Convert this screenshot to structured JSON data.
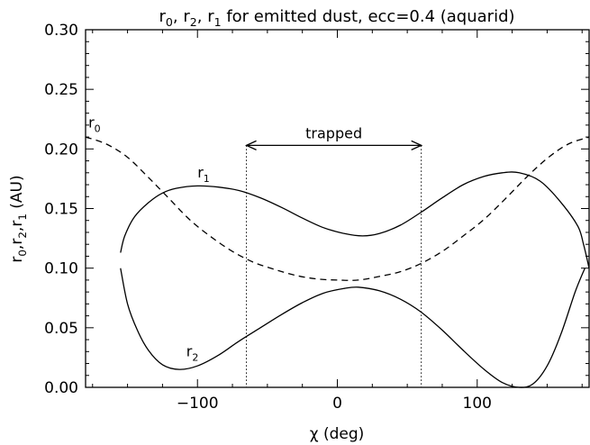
{
  "chart_data": {
    "type": "line",
    "title": {
      "parts": [
        {
          "t": "r"
        },
        {
          "t": "0",
          "sub": true
        },
        {
          "t": ", r"
        },
        {
          "t": "2",
          "sub": true
        },
        {
          "t": ", r"
        },
        {
          "t": "1",
          "sub": true
        },
        {
          "t": " for emitted dust, ecc=0.4 (aquarid)"
        }
      ]
    },
    "xlabel": "χ (deg)",
    "ylabel": {
      "parts": [
        {
          "t": "r"
        },
        {
          "t": "0",
          "sub": true
        },
        {
          "t": ",r"
        },
        {
          "t": "2",
          "sub": true
        },
        {
          "t": ",r"
        },
        {
          "t": "1",
          "sub": true
        },
        {
          "t": " (AU)"
        }
      ]
    },
    "xlim": [
      -180,
      180
    ],
    "ylim": [
      0,
      0.3
    ],
    "xticks": [
      -100,
      0,
      100
    ],
    "xtick_labels": [
      "−100",
      "0",
      "100"
    ],
    "yticks": [
      0,
      0.05,
      0.1,
      0.15,
      0.2,
      0.25,
      0.3
    ],
    "ytick_labels": [
      "0.00",
      "0.05",
      "0.10",
      "0.15",
      "0.20",
      "0.25",
      "0.30"
    ],
    "series": [
      {
        "label": {
          "base": "r",
          "sub": "0"
        },
        "style": "dashed",
        "points": [
          [
            -180,
            0.21
          ],
          [
            -165,
            0.204
          ],
          [
            -150,
            0.193
          ],
          [
            -135,
            0.176
          ],
          [
            -120,
            0.158
          ],
          [
            -105,
            0.14
          ],
          [
            -90,
            0.126
          ],
          [
            -75,
            0.114
          ],
          [
            -60,
            0.105
          ],
          [
            -45,
            0.099
          ],
          [
            -30,
            0.094
          ],
          [
            -15,
            0.091
          ],
          [
            0,
            0.09
          ],
          [
            15,
            0.09
          ],
          [
            30,
            0.093
          ],
          [
            45,
            0.097
          ],
          [
            60,
            0.104
          ],
          [
            75,
            0.114
          ],
          [
            90,
            0.127
          ],
          [
            105,
            0.141
          ],
          [
            120,
            0.158
          ],
          [
            135,
            0.176
          ],
          [
            150,
            0.192
          ],
          [
            165,
            0.204
          ],
          [
            180,
            0.21
          ]
        ]
      },
      {
        "label": {
          "base": "r",
          "sub": "1"
        },
        "style": "solid",
        "points": [
          [
            -155,
            0.113
          ],
          [
            -152,
            0.127
          ],
          [
            -145,
            0.143
          ],
          [
            -135,
            0.155
          ],
          [
            -125,
            0.163
          ],
          [
            -115,
            0.167
          ],
          [
            -100,
            0.169
          ],
          [
            -85,
            0.168
          ],
          [
            -70,
            0.165
          ],
          [
            -55,
            0.159
          ],
          [
            -40,
            0.151
          ],
          [
            -25,
            0.142
          ],
          [
            -10,
            0.134
          ],
          [
            5,
            0.129
          ],
          [
            18,
            0.127
          ],
          [
            30,
            0.129
          ],
          [
            45,
            0.136
          ],
          [
            60,
            0.147
          ],
          [
            75,
            0.159
          ],
          [
            90,
            0.17
          ],
          [
            105,
            0.177
          ],
          [
            118,
            0.18
          ],
          [
            130,
            0.18
          ],
          [
            145,
            0.173
          ],
          [
            160,
            0.155
          ],
          [
            172,
            0.135
          ],
          [
            176,
            0.12
          ],
          [
            180,
            0.1
          ]
        ]
      },
      {
        "label": {
          "base": "r",
          "sub": "2"
        },
        "style": "solid",
        "points": [
          [
            -155,
            0.1
          ],
          [
            -150,
            0.07
          ],
          [
            -143,
            0.048
          ],
          [
            -135,
            0.031
          ],
          [
            -125,
            0.019
          ],
          [
            -113,
            0.015
          ],
          [
            -100,
            0.018
          ],
          [
            -85,
            0.027
          ],
          [
            -70,
            0.039
          ],
          [
            -55,
            0.05
          ],
          [
            -40,
            0.061
          ],
          [
            -25,
            0.071
          ],
          [
            -10,
            0.079
          ],
          [
            5,
            0.083
          ],
          [
            15,
            0.084
          ],
          [
            30,
            0.081
          ],
          [
            45,
            0.074
          ],
          [
            60,
            0.063
          ],
          [
            75,
            0.048
          ],
          [
            90,
            0.031
          ],
          [
            105,
            0.015
          ],
          [
            118,
            0.004
          ],
          [
            130,
            0.0
          ],
          [
            140,
            0.003
          ],
          [
            150,
            0.018
          ],
          [
            160,
            0.045
          ],
          [
            170,
            0.08
          ],
          [
            177,
            0.1
          ]
        ]
      }
    ],
    "annotations": {
      "trapped_text": "trapped",
      "trapped_range": [
        -65,
        60
      ],
      "trapped_arrow_y": 0.203,
      "label_positions": {
        "r0": [
          -178,
          0.218
        ],
        "r1": [
          -100,
          0.176
        ],
        "r2": [
          -108,
          0.026
        ]
      }
    }
  }
}
